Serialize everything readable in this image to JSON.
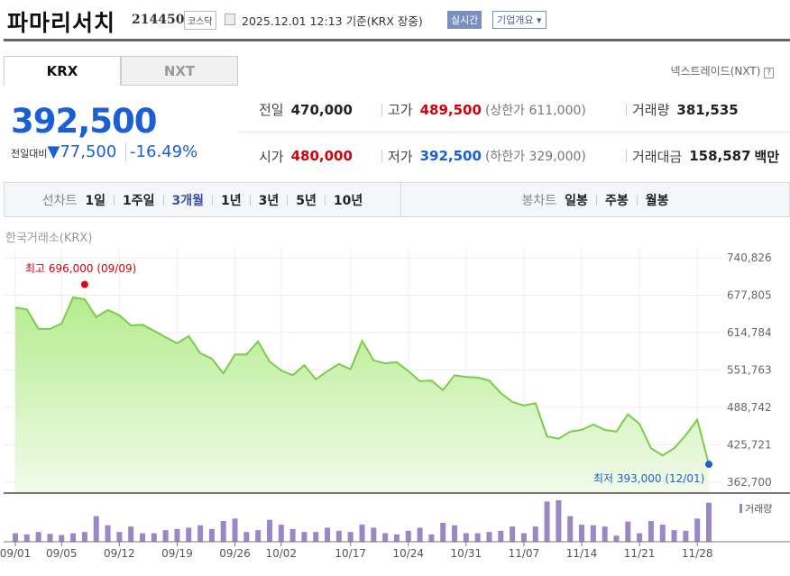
{
  "header": {
    "title": "파마리서치",
    "code": "214450",
    "market": "코스닥",
    "timestamp": "2025.12.01 12:13",
    "basis": "기준(KRX 장중)",
    "realtime_btn": "실시간",
    "company_btn": "기업개요 ▾"
  },
  "tabs": [
    {
      "label": "KRX",
      "active": true
    },
    {
      "label": "NXT",
      "active": false
    }
  ],
  "nxt_link": "넥스트레이드(NXT)",
  "help_icon": "?",
  "quote": {
    "price": "392,500",
    "change_label": "전일대비",
    "change_arrow": "▼",
    "change": "77,500",
    "change_pct": "-16.49%",
    "prev_label": "전일",
    "prev": "470,000",
    "open_label": "시가",
    "open": "480,000",
    "high_label": "고가",
    "high": "489,500",
    "upper_limit": "(상한가 611,000)",
    "low_label": "저가",
    "low": "392,500",
    "lower_limit": "(하한가 329,000)",
    "volume_label": "거래량",
    "volume": "381,535",
    "amount_label": "거래대금",
    "amount": "158,587",
    "amount_unit": "백만"
  },
  "periods": {
    "line_label": "선차트",
    "line": [
      "1일",
      "1주일",
      "3개월",
      "1년",
      "3년",
      "5년",
      "10년"
    ],
    "active": "3개월",
    "candle_label": "봉차트",
    "candle": [
      "일봉",
      "주봉",
      "월봉"
    ]
  },
  "chart_source": "한국거래소(KRX)",
  "colors": {
    "up": "#d4000a",
    "down": "#1a5fd6",
    "line": "#7acc4a",
    "volume": "#9b86c6"
  },
  "chart_data": {
    "type": "area",
    "title": "",
    "ylim": [
      362700,
      740826
    ],
    "yticks": [
      "740,826",
      "677,805",
      "614,784",
      "551,763",
      "488,742",
      "425,721",
      "362,700"
    ],
    "xticks": [
      {
        "i": 0,
        "label": "09/01"
      },
      {
        "i": 4,
        "label": "09/05"
      },
      {
        "i": 9,
        "label": "09/12"
      },
      {
        "i": 14,
        "label": "09/19"
      },
      {
        "i": 19,
        "label": "09/26"
      },
      {
        "i": 23,
        "label": "10/02"
      },
      {
        "i": 29,
        "label": "10/17"
      },
      {
        "i": 34,
        "label": "10/24"
      },
      {
        "i": 39,
        "label": "10/31"
      },
      {
        "i": 44,
        "label": "11/07"
      },
      {
        "i": 49,
        "label": "11/14"
      },
      {
        "i": 54,
        "label": "11/21"
      },
      {
        "i": 59,
        "label": "11/28"
      }
    ],
    "price": [
      657000,
      654000,
      621000,
      621000,
      630000,
      674000,
      671000,
      641000,
      653000,
      644000,
      627000,
      628000,
      618000,
      607000,
      597000,
      609000,
      580000,
      571000,
      546000,
      578000,
      578000,
      600000,
      566000,
      551000,
      543000,
      560000,
      536000,
      550000,
      562000,
      553000,
      601000,
      568000,
      563000,
      565000,
      550000,
      533000,
      534000,
      518000,
      543000,
      540000,
      539000,
      534000,
      513000,
      498000,
      492000,
      496000,
      440000,
      436000,
      448000,
      451000,
      460000,
      451000,
      448000,
      477000,
      461000,
      420000,
      408000,
      420000,
      442000,
      468000,
      393000
    ],
    "max": {
      "i": 6,
      "value": 696000,
      "label": "최고 696,000 (09/09)"
    },
    "min": {
      "i": 60,
      "value": 393000,
      "label": "최저 393,000 (12/01)"
    },
    "volume_legend": "거래량",
    "volume_relative": [
      28,
      24,
      32,
      26,
      22,
      28,
      32,
      84,
      54,
      32,
      50,
      28,
      28,
      38,
      42,
      46,
      54,
      42,
      68,
      76,
      32,
      38,
      72,
      56,
      42,
      32,
      32,
      46,
      36,
      32,
      56,
      46,
      28,
      24,
      36,
      46,
      24,
      62,
      54,
      28,
      28,
      32,
      36,
      50,
      28,
      50,
      132,
      136,
      84,
      56,
      54,
      50,
      20,
      66,
      28,
      68,
      56,
      38,
      36,
      76,
      128
    ]
  }
}
